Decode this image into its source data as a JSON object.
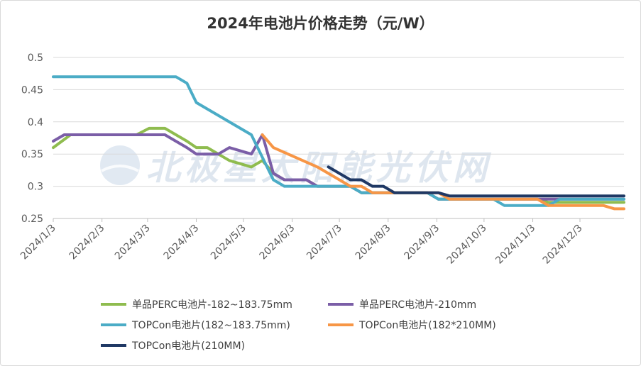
{
  "chart_data": {
    "type": "line",
    "title": "2024年电池片价格走势（元/W）",
    "xlabel": "",
    "ylabel": "",
    "xlim": [
      "2024-01-03",
      "2024-12-31"
    ],
    "ylim": [
      0.25,
      0.5
    ],
    "yticks": [
      0.25,
      0.3,
      0.35,
      0.4,
      0.45,
      0.5
    ],
    "ytick_labels": [
      "0.25",
      "0.3",
      "0.35",
      "0.4",
      "0.45",
      "0.5"
    ],
    "xticks": [
      "2024-01-03",
      "2024-02-03",
      "2024-03-03",
      "2024-04-03",
      "2024-05-03",
      "2024-06-03",
      "2024-07-03",
      "2024-08-03",
      "2024-09-03",
      "2024-10-03",
      "2024-11-03",
      "2024-12-03"
    ],
    "xtick_labels": [
      "2024/1/3",
      "2024/2/3",
      "2024/3/3",
      "2024/4/3",
      "2024/5/3",
      "2024/6/3",
      "2024/7/3",
      "2024/8/3",
      "2024/9/3",
      "2024/10/3",
      "2024/11/3",
      "2024/12/3"
    ],
    "grid": "horizontal",
    "legend_position": "bottom",
    "watermark": "北极星太阳能光伏网",
    "series": [
      {
        "name": "单品PERC电池片-182~183.75mm",
        "color": "#8fbc4f",
        "points": [
          [
            "2024-01-03",
            0.36
          ],
          [
            "2024-01-14",
            0.38
          ],
          [
            "2024-02-25",
            0.38
          ],
          [
            "2024-03-04",
            0.39
          ],
          [
            "2024-03-14",
            0.39
          ],
          [
            "2024-03-28",
            0.37
          ],
          [
            "2024-04-03",
            0.36
          ],
          [
            "2024-04-10",
            0.36
          ],
          [
            "2024-04-24",
            0.34
          ],
          [
            "2024-05-08",
            0.33
          ],
          [
            "2024-05-15",
            0.34
          ],
          [
            "2024-05-22",
            0.32
          ],
          [
            "2024-05-29",
            0.31
          ],
          [
            "2024-06-12",
            0.31
          ],
          [
            "2024-06-19",
            0.3
          ],
          [
            "2024-07-10",
            0.3
          ],
          [
            "2024-07-17",
            0.29
          ],
          [
            "2024-08-28",
            0.29
          ],
          [
            "2024-09-04",
            0.28
          ],
          [
            "2024-11-06",
            0.28
          ],
          [
            "2024-11-13",
            0.275
          ],
          [
            "2024-12-31",
            0.275
          ]
        ]
      },
      {
        "name": "单品PERC电池片-210mm",
        "color": "#7b5ea7",
        "points": [
          [
            "2024-01-03",
            0.37
          ],
          [
            "2024-01-10",
            0.38
          ],
          [
            "2024-03-14",
            0.38
          ],
          [
            "2024-03-28",
            0.36
          ],
          [
            "2024-04-03",
            0.35
          ],
          [
            "2024-04-17",
            0.35
          ],
          [
            "2024-04-24",
            0.36
          ],
          [
            "2024-05-08",
            0.35
          ],
          [
            "2024-05-15",
            0.38
          ],
          [
            "2024-05-22",
            0.32
          ],
          [
            "2024-05-29",
            0.31
          ],
          [
            "2024-06-12",
            0.31
          ],
          [
            "2024-06-19",
            0.3
          ],
          [
            "2024-07-10",
            0.3
          ],
          [
            "2024-07-17",
            0.29
          ],
          [
            "2024-08-28",
            0.29
          ],
          [
            "2024-09-04",
            0.28
          ],
          [
            "2024-12-31",
            0.28
          ]
        ]
      },
      {
        "name": "TOPCon电池片(182~183.75mm)",
        "color": "#4bacc6",
        "points": [
          [
            "2024-01-03",
            0.47
          ],
          [
            "2024-03-21",
            0.47
          ],
          [
            "2024-03-28",
            0.46
          ],
          [
            "2024-04-03",
            0.43
          ],
          [
            "2024-05-08",
            0.38
          ],
          [
            "2024-05-22",
            0.31
          ],
          [
            "2024-05-29",
            0.3
          ],
          [
            "2024-07-10",
            0.3
          ],
          [
            "2024-07-17",
            0.29
          ],
          [
            "2024-08-28",
            0.29
          ],
          [
            "2024-09-04",
            0.28
          ],
          [
            "2024-10-09",
            0.28
          ],
          [
            "2024-10-16",
            0.27
          ],
          [
            "2024-11-13",
            0.27
          ],
          [
            "2024-11-20",
            0.28
          ],
          [
            "2024-12-31",
            0.28
          ]
        ]
      },
      {
        "name": "TOPCon电池片(182*210MM)",
        "color": "#f79646",
        "points": [
          [
            "2024-05-15",
            0.38
          ],
          [
            "2024-05-22",
            0.36
          ],
          [
            "2024-06-19",
            0.33
          ],
          [
            "2024-07-03",
            0.31
          ],
          [
            "2024-07-10",
            0.3
          ],
          [
            "2024-07-17",
            0.3
          ],
          [
            "2024-07-24",
            0.29
          ],
          [
            "2024-09-04",
            0.29
          ],
          [
            "2024-09-11",
            0.28
          ],
          [
            "2024-11-06",
            0.28
          ],
          [
            "2024-11-13",
            0.27
          ],
          [
            "2024-12-18",
            0.27
          ],
          [
            "2024-12-25",
            0.265
          ],
          [
            "2024-12-31",
            0.265
          ]
        ]
      },
      {
        "name": "TOPCon电池片(210MM)",
        "color": "#1f3864",
        "points": [
          [
            "2024-06-26",
            0.33
          ],
          [
            "2024-07-10",
            0.31
          ],
          [
            "2024-07-17",
            0.31
          ],
          [
            "2024-07-24",
            0.3
          ],
          [
            "2024-07-31",
            0.3
          ],
          [
            "2024-08-07",
            0.29
          ],
          [
            "2024-08-21",
            0.29
          ],
          [
            "2024-09-04",
            0.29
          ],
          [
            "2024-09-11",
            0.285
          ],
          [
            "2024-12-31",
            0.285
          ]
        ]
      }
    ]
  }
}
